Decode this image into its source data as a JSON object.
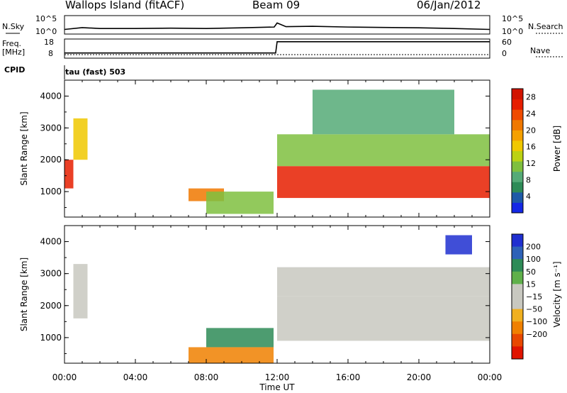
{
  "header": {
    "title": "Wallops Island (fitACF)",
    "beam": "Beam 09",
    "date": "06/Jan/2012"
  },
  "side_labels": {
    "nsky": "N.Sky",
    "nsearch": "N.Search",
    "freq_line1": "Freq.",
    "freq_line2": "[MHz]",
    "nave": "Nave",
    "cpid": "CPID",
    "cpid_value": "tau (fast) 503"
  },
  "noise_axis": {
    "left_ticks": [
      "10^5",
      "10^0"
    ],
    "right_ticks": [
      "10^5",
      "10^0"
    ]
  },
  "freq_axis": {
    "left_ticks": [
      "18",
      "8"
    ],
    "right_ticks": [
      "60",
      "0"
    ]
  },
  "colors": {
    "power_scale": [
      "#1428e6",
      "#1e5aa8",
      "#2e8b57",
      "#55aa77",
      "#7fbf3f",
      "#bcd214",
      "#f0c800",
      "#f5a000",
      "#f07800",
      "#f04b00",
      "#e61e00",
      "#d21400"
    ],
    "velocity_scale": [
      "#1f2fd0",
      "#2e62b8",
      "#2e8b57",
      "#5fb04a",
      "#c8c8c0",
      "#c8c8c0",
      "#f0b020",
      "#f08000",
      "#e84800",
      "#e01400"
    ]
  },
  "chart_data": [
    {
      "type": "line",
      "name": "noise",
      "series": [
        {
          "name": "N.Sky",
          "x": [
            "00:00",
            "01:00",
            "02:00",
            "04:00",
            "06:00",
            "08:00",
            "10:00",
            "11:50",
            "12:00",
            "12:30",
            "14:00",
            "16:00",
            "18:00",
            "20:00",
            "22:00",
            "24:00"
          ],
          "values": [
            0.25,
            0.35,
            0.3,
            0.3,
            0.32,
            0.3,
            0.34,
            0.38,
            0.6,
            0.4,
            0.42,
            0.38,
            0.36,
            0.34,
            0.3,
            0.25
          ]
        }
      ],
      "ylim": [
        0,
        1
      ],
      "ytick_labels": [
        "10^0",
        "10^5"
      ]
    },
    {
      "type": "line",
      "name": "frequency",
      "series": [
        {
          "name": "Freq. [MHz]",
          "x": [
            "00:00",
            "11:55",
            "12:00",
            "24:00"
          ],
          "values": [
            10.7,
            10.7,
            16.6,
            16.6
          ]
        }
      ],
      "ylim": [
        8,
        18
      ],
      "ytick_labels": [
        "8",
        "18"
      ]
    },
    {
      "type": "heatmap",
      "name": "power",
      "xlabel": "",
      "ylabel": "Slant Range [km]",
      "xlim_hours": [
        0,
        24
      ],
      "ylim": [
        200,
        4500
      ],
      "yticks": [
        1000,
        2000,
        3000,
        4000
      ],
      "colorbar": {
        "label": "Power [dB]",
        "ticks": [
          4,
          8,
          12,
          16,
          20,
          24,
          28
        ],
        "range": [
          0,
          30
        ]
      },
      "regions": [
        {
          "t0": 0.0,
          "t1": 0.5,
          "r0": 1100,
          "r1": 2000,
          "value": 27
        },
        {
          "t0": 0.5,
          "t1": 1.3,
          "r0": 2000,
          "r1": 3300,
          "value": 16
        },
        {
          "t0": 7.0,
          "t1": 9.0,
          "r0": 700,
          "r1": 1100,
          "value": 20
        },
        {
          "t0": 8.0,
          "t1": 11.8,
          "r0": 300,
          "r1": 1000,
          "value": 12
        },
        {
          "t0": 12.0,
          "t1": 24.0,
          "r0": 800,
          "r1": 1800,
          "value": 26
        },
        {
          "t0": 12.0,
          "t1": 24.0,
          "r0": 1800,
          "r1": 2800,
          "value": 12
        },
        {
          "t0": 14.0,
          "t1": 22.0,
          "r0": 2800,
          "r1": 4200,
          "value": 8
        }
      ]
    },
    {
      "type": "heatmap",
      "name": "velocity",
      "xlabel": "Time UT",
      "ylabel": "Slant Range [km]",
      "xlim_hours": [
        0,
        24
      ],
      "ylim": [
        200,
        4500
      ],
      "yticks": [
        1000,
        2000,
        3000,
        4000
      ],
      "xtick_labels": [
        "00:00",
        "04:00",
        "08:00",
        "12:00",
        "16:00",
        "20:00",
        "00:00"
      ],
      "colorbar": {
        "label": "Velocity [m s⁻¹]",
        "ticks": [
          "200",
          "100",
          "50",
          "15",
          "−15",
          "−50",
          "−100",
          "−200"
        ]
      },
      "regions": [
        {
          "t0": 0.5,
          "t1": 1.3,
          "r0": 1600,
          "r1": 3300,
          "value": 0
        },
        {
          "t0": 8.0,
          "t1": 11.8,
          "r0": 700,
          "r1": 1300,
          "value": 60
        },
        {
          "t0": 7.0,
          "t1": 11.8,
          "r0": 200,
          "r1": 700,
          "value": -60
        },
        {
          "t0": 12.0,
          "t1": 24.0,
          "r0": 900,
          "r1": 2300,
          "value": 0
        },
        {
          "t0": 12.0,
          "t1": 24.0,
          "r0": 2300,
          "r1": 3200,
          "value": -10
        },
        {
          "t0": 21.5,
          "t1": 23.0,
          "r0": 3600,
          "r1": 4200,
          "value": 220
        }
      ]
    }
  ]
}
